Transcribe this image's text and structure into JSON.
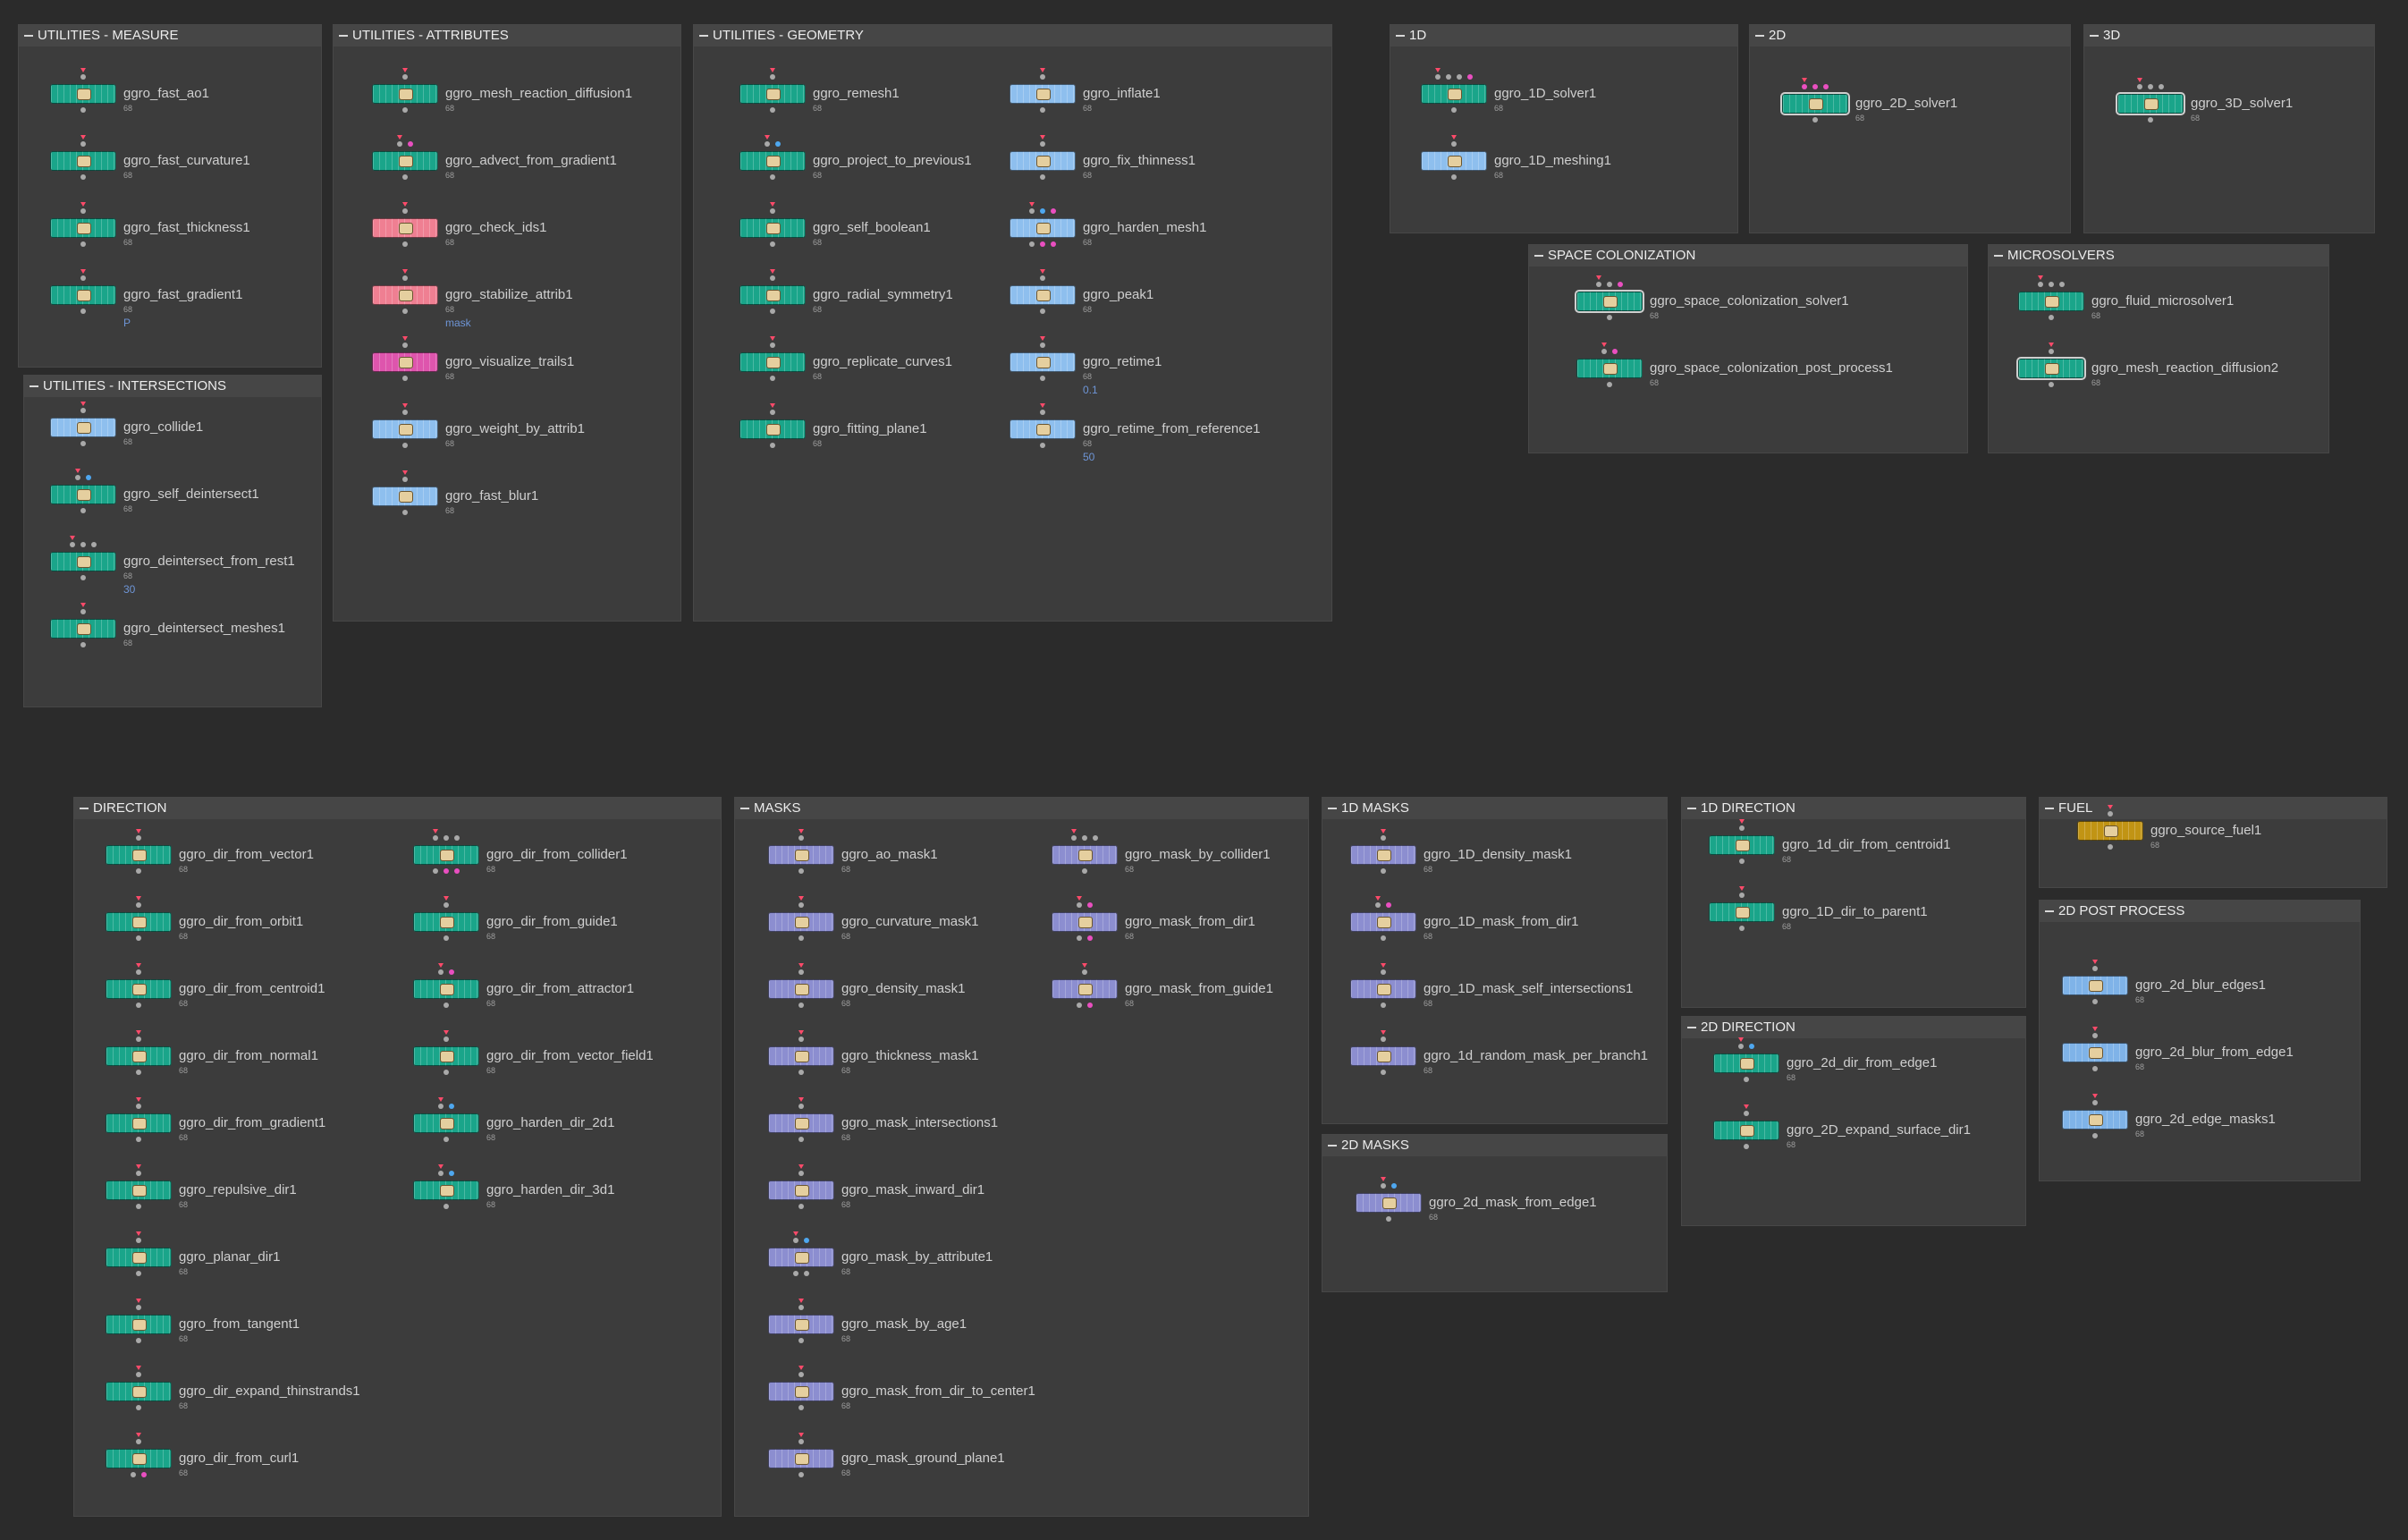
{
  "colors": {
    "background": "#2b2b2b",
    "network_box": "#3c3c3c",
    "node_green": "#1aa58a",
    "node_blue": "#8ebfee",
    "node_pink": "#ef7f92",
    "node_magenta": "#de55ad",
    "node_purple": "#8c8ed0",
    "node_yellow": "#c19414",
    "input_pink": "#e94fc0",
    "input_blue": "#4ea7ef",
    "display_flag": "#ff4a6a"
  },
  "network_boxes": [
    {
      "title": "UTILITIES - MEASURE",
      "nodes": [
        {
          "label": "ggro_fast_ao1",
          "sub": "68"
        },
        {
          "label": "ggro_fast_curvature1",
          "sub": "68"
        },
        {
          "label": "ggro_fast_thickness1",
          "sub": "68"
        },
        {
          "label": "ggro_fast_gradient1",
          "sub": "68",
          "extra": "P"
        }
      ]
    },
    {
      "title": "UTILITIES - INTERSECTIONS",
      "nodes": [
        {
          "label": "ggro_collide1",
          "sub": "68"
        },
        {
          "label": "ggro_self_deintersect1",
          "sub": "68"
        },
        {
          "label": "ggro_deintersect_from_rest1",
          "sub": "68",
          "extra": "30"
        },
        {
          "label": "ggro_deintersect_meshes1",
          "sub": "68"
        }
      ]
    },
    {
      "title": "UTILITIES - ATTRIBUTES",
      "nodes": [
        {
          "label": "ggro_mesh_reaction_diffusion1",
          "sub": "68"
        },
        {
          "label": "ggro_advect_from_gradient1",
          "sub": "68"
        },
        {
          "label": "ggro_check_ids1",
          "sub": "68"
        },
        {
          "label": "ggro_stabilize_attrib1",
          "sub": "68",
          "extra": "mask"
        },
        {
          "label": "ggro_visualize_trails1",
          "sub": "68"
        },
        {
          "label": "ggro_weight_by_attrib1",
          "sub": "68"
        },
        {
          "label": "ggro_fast_blur1",
          "sub": "68"
        }
      ]
    },
    {
      "title": "UTILITIES - GEOMETRY",
      "nodes": [
        {
          "label": "ggro_remesh1",
          "sub": "68"
        },
        {
          "label": "ggro_project_to_previous1",
          "sub": "68"
        },
        {
          "label": "ggro_self_boolean1",
          "sub": "68"
        },
        {
          "label": "ggro_radial_symmetry1",
          "sub": "68"
        },
        {
          "label": "ggro_replicate_curves1",
          "sub": "68"
        },
        {
          "label": "ggro_fitting_plane1",
          "sub": "68"
        },
        {
          "label": "ggro_inflate1",
          "sub": "68"
        },
        {
          "label": "ggro_fix_thinness1",
          "sub": "68"
        },
        {
          "label": "ggro_harden_mesh1",
          "sub": "68"
        },
        {
          "label": "ggro_peak1",
          "sub": "68"
        },
        {
          "label": "ggro_retime1",
          "sub": "68",
          "extra": "0.1"
        },
        {
          "label": "ggro_retime_from_reference1",
          "sub": "68",
          "extra": "50"
        }
      ]
    },
    {
      "title": "1D",
      "nodes": [
        {
          "label": "ggro_1D_solver1",
          "sub": "68"
        },
        {
          "label": "ggro_1D_meshing1",
          "sub": "68"
        }
      ]
    },
    {
      "title": "2D",
      "nodes": [
        {
          "label": "ggro_2D_solver1",
          "sub": "68"
        }
      ]
    },
    {
      "title": "3D",
      "nodes": [
        {
          "label": "ggro_3D_solver1",
          "sub": "68"
        }
      ]
    },
    {
      "title": "SPACE COLONIZATION",
      "nodes": [
        {
          "label": "ggro_space_colonization_solver1",
          "sub": "68"
        },
        {
          "label": "ggro_space_colonization_post_process1",
          "sub": "68"
        }
      ]
    },
    {
      "title": "MICROSOLVERS",
      "nodes": [
        {
          "label": "ggro_fluid_microsolver1",
          "sub": "68"
        },
        {
          "label": "ggro_mesh_reaction_diffusion2",
          "sub": "68"
        }
      ]
    },
    {
      "title": "DIRECTION",
      "nodes": [
        {
          "label": "ggro_dir_from_vector1",
          "sub": "68"
        },
        {
          "label": "ggro_dir_from_orbit1",
          "sub": "68"
        },
        {
          "label": "ggro_dir_from_centroid1",
          "sub": "68"
        },
        {
          "label": "ggro_dir_from_normal1",
          "sub": "68"
        },
        {
          "label": "ggro_dir_from_gradient1",
          "sub": "68"
        },
        {
          "label": "ggro_repulsive_dir1",
          "sub": "68"
        },
        {
          "label": "ggro_planar_dir1",
          "sub": "68"
        },
        {
          "label": "ggro_from_tangent1",
          "sub": "68"
        },
        {
          "label": "ggro_dir_expand_thinstrands1",
          "sub": "68"
        },
        {
          "label": "ggro_dir_from_curl1",
          "sub": "68"
        },
        {
          "label": "ggro_dir_from_collider1",
          "sub": "68"
        },
        {
          "label": "ggro_dir_from_guide1",
          "sub": "68"
        },
        {
          "label": "ggro_dir_from_attractor1",
          "sub": "68"
        },
        {
          "label": "ggro_dir_from_vector_field1",
          "sub": "68"
        },
        {
          "label": "ggro_harden_dir_2d1",
          "sub": "68"
        },
        {
          "label": "ggro_harden_dir_3d1",
          "sub": "68"
        }
      ]
    },
    {
      "title": "MASKS",
      "nodes": [
        {
          "label": "ggro_ao_mask1",
          "sub": "68"
        },
        {
          "label": "ggro_curvature_mask1",
          "sub": "68"
        },
        {
          "label": "ggro_density_mask1",
          "sub": "68"
        },
        {
          "label": "ggro_thickness_mask1",
          "sub": "68"
        },
        {
          "label": "ggro_mask_intersections1",
          "sub": "68"
        },
        {
          "label": "ggro_mask_inward_dir1",
          "sub": "68"
        },
        {
          "label": "ggro_mask_by_attribute1",
          "sub": "68"
        },
        {
          "label": "ggro_mask_by_age1",
          "sub": "68"
        },
        {
          "label": "ggro_mask_from_dir_to_center1",
          "sub": "68"
        },
        {
          "label": "ggro_mask_ground_plane1",
          "sub": "68"
        },
        {
          "label": "ggro_mask_by_collider1",
          "sub": "68"
        },
        {
          "label": "ggro_mask_from_dir1",
          "sub": "68"
        },
        {
          "label": "ggro_mask_from_guide1",
          "sub": "68"
        }
      ]
    },
    {
      "title": "1D MASKS",
      "nodes": [
        {
          "label": "ggro_1D_density_mask1",
          "sub": "68"
        },
        {
          "label": "ggro_1D_mask_from_dir1",
          "sub": "68"
        },
        {
          "label": "ggro_1D_mask_self_intersections1",
          "sub": "68"
        },
        {
          "label": "ggro_1d_random_mask_per_branch1",
          "sub": "68"
        }
      ]
    },
    {
      "title": "2D MASKS",
      "nodes": [
        {
          "label": "ggro_2d_mask_from_edge1",
          "sub": "68"
        }
      ]
    },
    {
      "title": "1D DIRECTION",
      "nodes": [
        {
          "label": "ggro_1d_dir_from_centroid1",
          "sub": "68"
        },
        {
          "label": "ggro_1D_dir_to_parent1",
          "sub": "68"
        }
      ]
    },
    {
      "title": "2D DIRECTION",
      "nodes": [
        {
          "label": "ggro_2d_dir_from_edge1",
          "sub": "68"
        },
        {
          "label": "ggro_2D_expand_surface_dir1",
          "sub": "68"
        }
      ]
    },
    {
      "title": "FUEL",
      "nodes": [
        {
          "label": "ggro_source_fuel1",
          "sub": "68"
        }
      ]
    },
    {
      "title": "2D POST PROCESS",
      "nodes": [
        {
          "label": "ggro_2d_blur_edges1",
          "sub": "68"
        },
        {
          "label": "ggro_2d_blur_from_edge1",
          "sub": "68"
        },
        {
          "label": "ggro_2d_edge_masks1",
          "sub": "68"
        }
      ]
    }
  ]
}
